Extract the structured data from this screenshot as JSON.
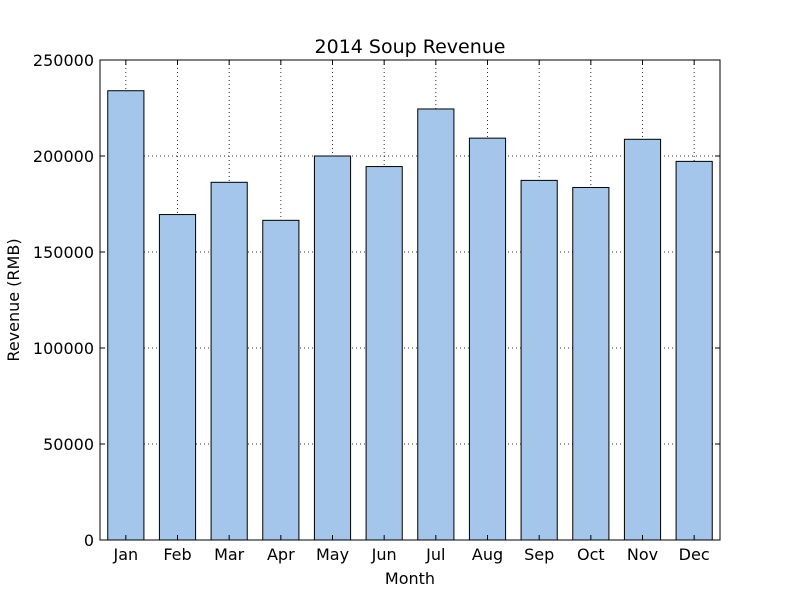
{
  "chart_data": {
    "type": "bar",
    "title": "2014 Soup Revenue",
    "xlabel": "Month",
    "ylabel": "Revenue (RMB)",
    "categories": [
      "Jan",
      "Feb",
      "Mar",
      "Apr",
      "May",
      "Jun",
      "Jul",
      "Aug",
      "Sep",
      "Oct",
      "Nov",
      "Dec"
    ],
    "values": [
      234000,
      169500,
      186300,
      166500,
      200000,
      194500,
      224500,
      209300,
      187300,
      183600,
      208700,
      197200
    ],
    "ylim": [
      0,
      250000
    ],
    "yticks": [
      "0",
      "50000",
      "100000",
      "150000",
      "200000",
      "250000"
    ],
    "ytick_values": [
      0,
      50000,
      100000,
      150000,
      200000,
      250000
    ],
    "grid": true,
    "bar_color": "#a4c6ea",
    "bar_edge_color": "#000000"
  }
}
